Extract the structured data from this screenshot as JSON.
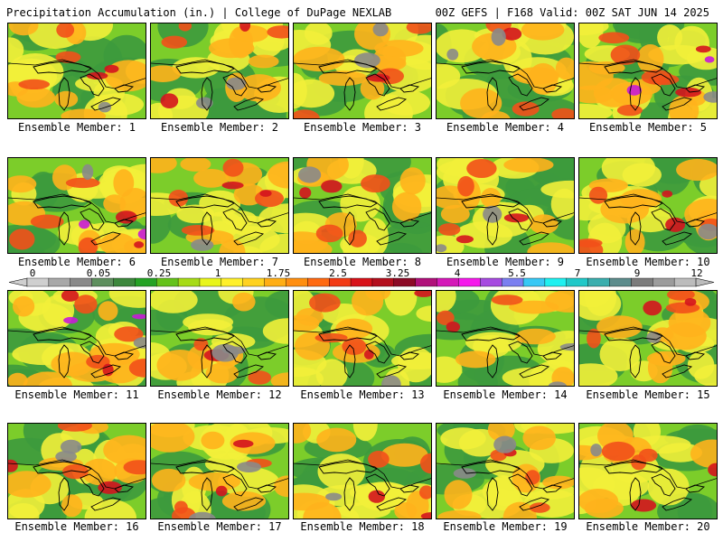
{
  "header": {
    "left_title": "Precipitation Accumulation (in.) | College of DuPage NEXLAB",
    "right_title": "00Z GEFS | F168 Valid: 00Z SAT JUN 14 2025"
  },
  "colorbar": {
    "labels": [
      "0",
      "0.05",
      "0.25",
      "1",
      "1.75",
      "2.5",
      "3.25",
      "4",
      "5.5",
      "7",
      "9",
      "12"
    ],
    "colors": [
      "#cfcfcf",
      "#a8a8a8",
      "#8a8a8a",
      "#5e8f5e",
      "#3c873c",
      "#25a225",
      "#64c21a",
      "#a6db15",
      "#e8f51a",
      "#fff02a",
      "#ffd21f",
      "#ffae15",
      "#ff8e10",
      "#ff6a12",
      "#f23a15",
      "#d8121a",
      "#b40f1e",
      "#8c0a26",
      "#b0107a",
      "#d418b8",
      "#f51aeb",
      "#a64ae0",
      "#7b7ff0",
      "#38c8f5",
      "#1ff0f0",
      "#20c8c8",
      "#3aaeae",
      "#5c8c8c",
      "#7c7c7c",
      "#9c9c9c",
      "#bcbcbc"
    ]
  },
  "members": [
    {
      "label": "Ensemble Member: 1",
      "wetness": 0.55
    },
    {
      "label": "Ensemble Member: 2",
      "wetness": 0.5
    },
    {
      "label": "Ensemble Member: 3",
      "wetness": 0.45
    },
    {
      "label": "Ensemble Member: 4",
      "wetness": 0.45
    },
    {
      "label": "Ensemble Member: 5",
      "wetness": 0.75
    },
    {
      "label": "Ensemble Member: 6",
      "wetness": 0.7
    },
    {
      "label": "Ensemble Member: 7",
      "wetness": 0.6
    },
    {
      "label": "Ensemble Member: 8",
      "wetness": 0.55
    },
    {
      "label": "Ensemble Member: 9",
      "wetness": 0.5
    },
    {
      "label": "Ensemble Member: 10",
      "wetness": 0.6
    },
    {
      "label": "Ensemble Member: 11",
      "wetness": 0.7
    },
    {
      "label": "Ensemble Member: 12",
      "wetness": 0.4
    },
    {
      "label": "Ensemble Member: 13",
      "wetness": 0.55
    },
    {
      "label": "Ensemble Member: 14",
      "wetness": 0.3
    },
    {
      "label": "Ensemble Member: 15",
      "wetness": 0.55
    },
    {
      "label": "Ensemble Member: 16",
      "wetness": 0.5
    },
    {
      "label": "Ensemble Member: 17",
      "wetness": 0.5
    },
    {
      "label": "Ensemble Member: 18",
      "wetness": 0.55
    },
    {
      "label": "Ensemble Member: 19",
      "wetness": 0.45
    },
    {
      "label": "Ensemble Member: 20",
      "wetness": 0.55
    }
  ],
  "field_colors": {
    "dry": "#3d9a3d",
    "light": "#7ccd2a",
    "moderate": "#f2ef3a",
    "heavy": "#ffb21c",
    "very_heavy": "#f2501a",
    "extreme": "#d4141e",
    "max": "#c81ad8",
    "trace": "#8a8a8a"
  }
}
